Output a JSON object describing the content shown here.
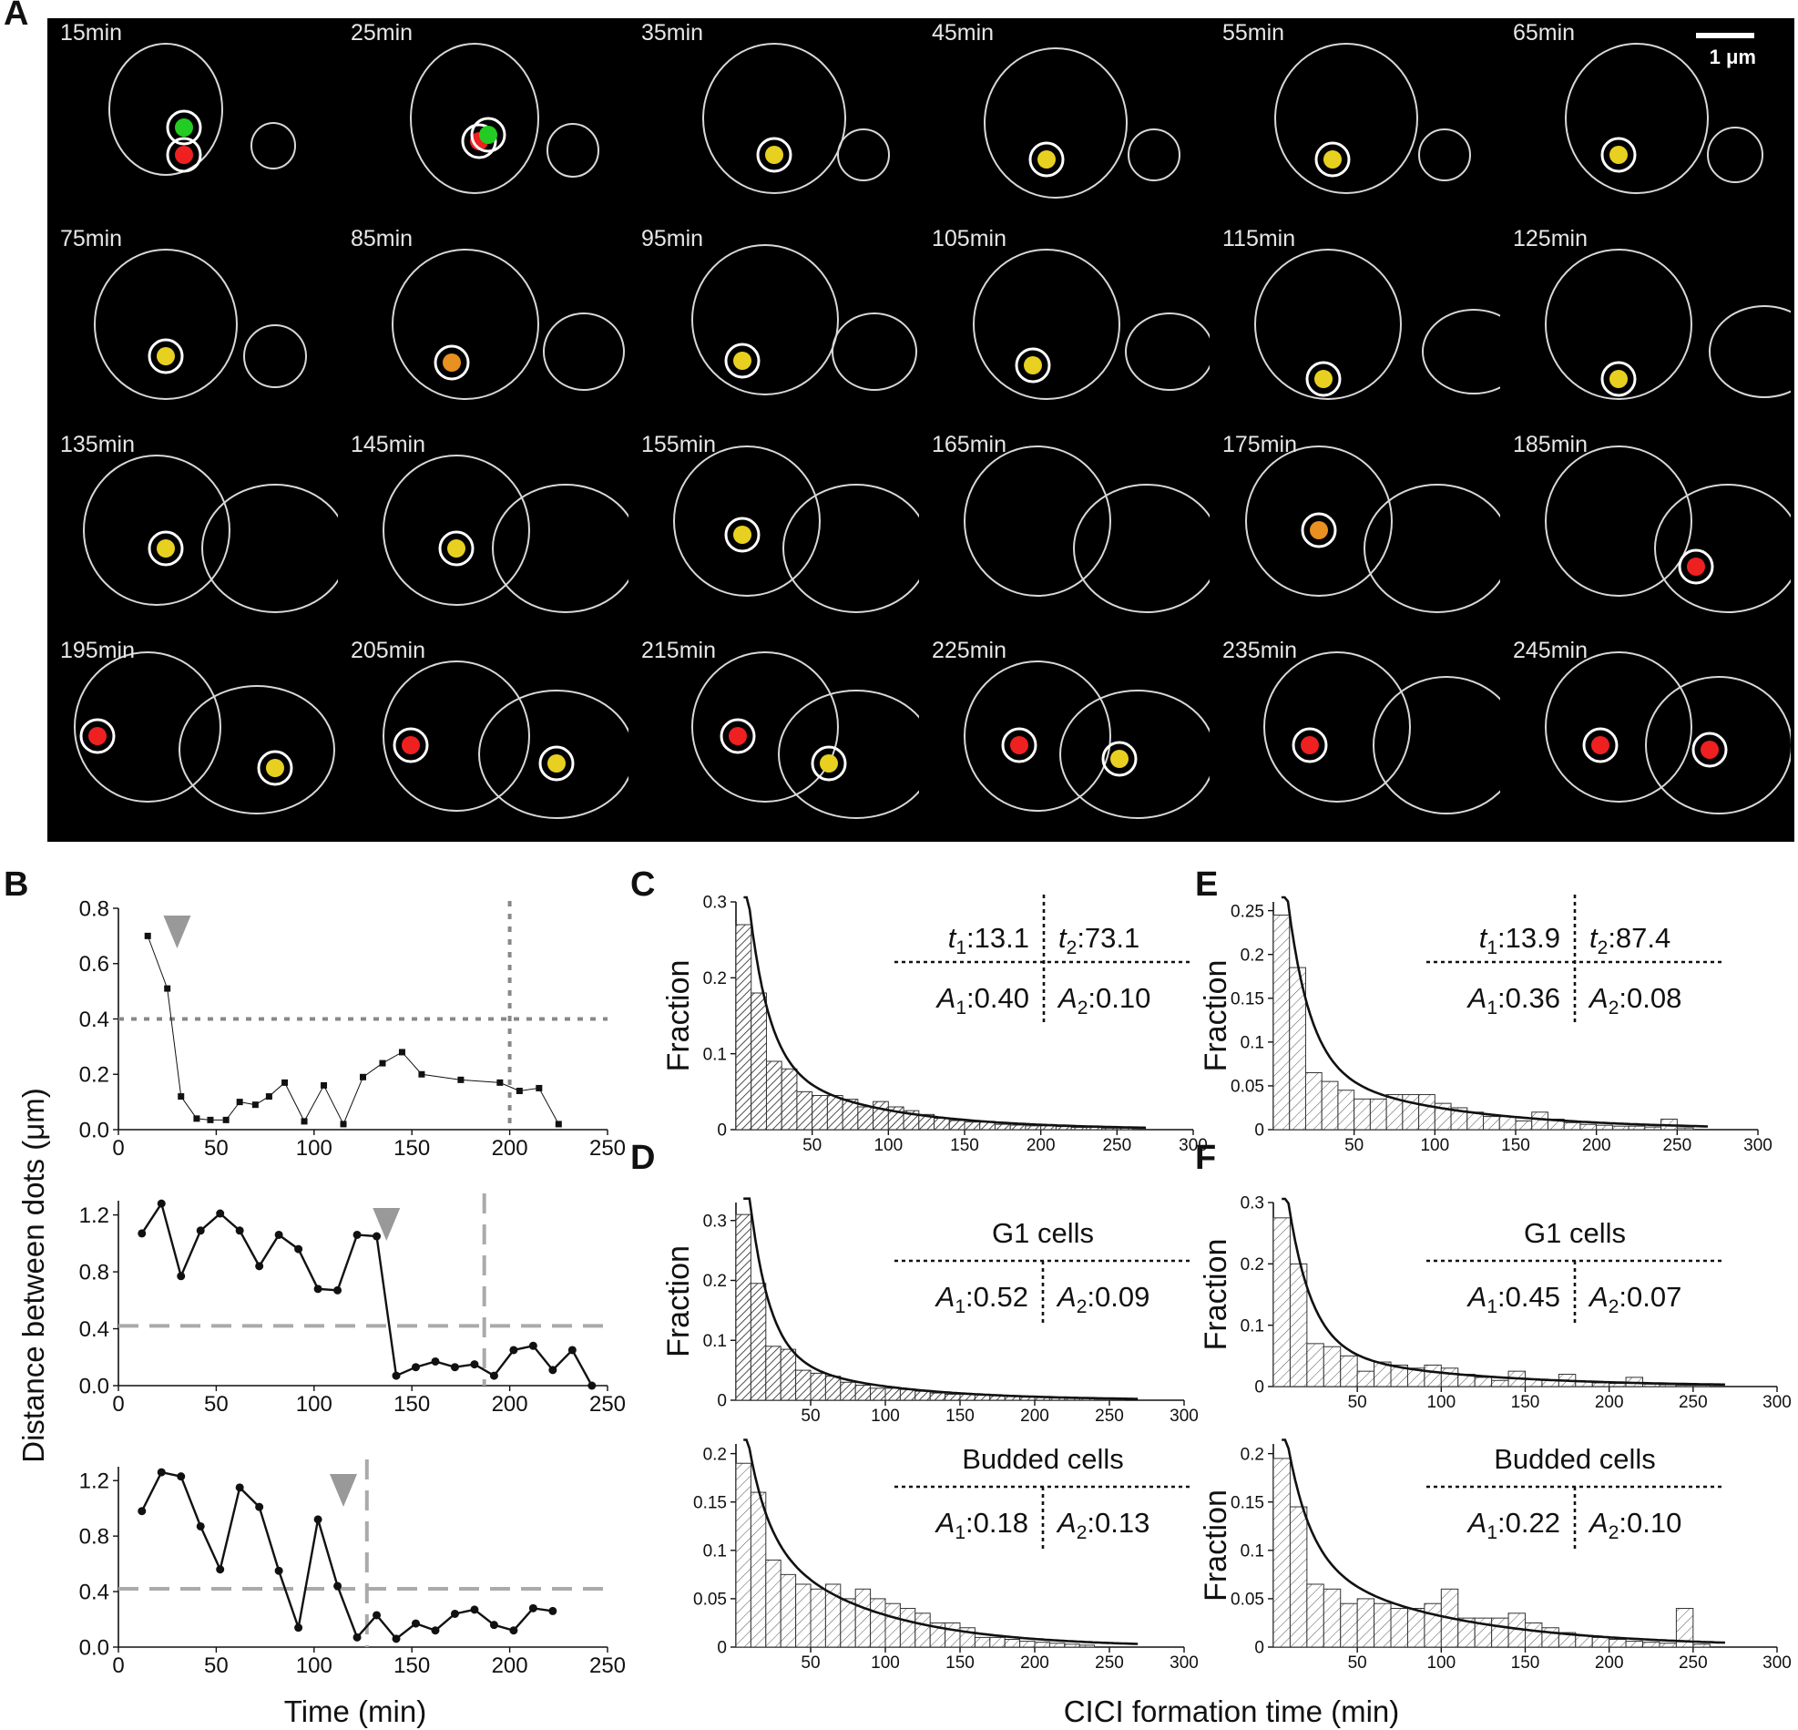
{
  "panel_labels": {
    "A": "A",
    "B": "B",
    "C": "C",
    "D": "D",
    "E": "E",
    "F": "F"
  },
  "panel_a": {
    "scale_bar_label": "1 μm",
    "time_labels": [
      "15min",
      "25min",
      "35min",
      "45min",
      "55min",
      "65min",
      "75min",
      "85min",
      "95min",
      "105min",
      "115min",
      "125min",
      "135min",
      "145min",
      "155min",
      "165min",
      "175min",
      "185min",
      "195min",
      "205min",
      "215min",
      "225min",
      "235min",
      "245min"
    ]
  },
  "shared_labels": {
    "b_ylabel": "Distance between dots (μm)",
    "b_xlabel": "Time (min)",
    "hist_xlabel": "CICI formation time (min)"
  },
  "chart_data": [
    {
      "id": "B1",
      "type": "line",
      "x": [
        15,
        25,
        32,
        40,
        47,
        55,
        62,
        70,
        77,
        85,
        95,
        105,
        115,
        125,
        135,
        145,
        155,
        175,
        195,
        205,
        215,
        225
      ],
      "y": [
        0.7,
        0.51,
        0.12,
        0.04,
        0.035,
        0.035,
        0.1,
        0.09,
        0.12,
        0.17,
        0.03,
        0.16,
        0.02,
        0.19,
        0.24,
        0.28,
        0.2,
        0.18,
        0.17,
        0.14,
        0.15,
        0.02
      ],
      "xlim": [
        0,
        250
      ],
      "ylim": [
        0,
        0.8
      ],
      "xticks": [
        0,
        50,
        100,
        150,
        200,
        250
      ],
      "yticks": [
        "0.0",
        "0.2",
        "0.4",
        "0.6",
        "0.8"
      ],
      "threshold_y": 0.4,
      "event_x": 200,
      "arrow_x": 30,
      "marker": "square",
      "style": "dotted"
    },
    {
      "id": "B2",
      "type": "line",
      "x": [
        12,
        22,
        32,
        42,
        52,
        62,
        72,
        82,
        92,
        102,
        112,
        122,
        132,
        142,
        152,
        162,
        172,
        182,
        192,
        202,
        212,
        222,
        232,
        242
      ],
      "y": [
        1.07,
        1.28,
        0.77,
        1.09,
        1.21,
        1.09,
        0.84,
        1.06,
        0.96,
        0.68,
        0.67,
        1.06,
        1.05,
        0.07,
        0.13,
        0.17,
        0.13,
        0.15,
        0.07,
        0.25,
        0.28,
        0.11,
        0.25,
        0
      ],
      "xlim": [
        0,
        250
      ],
      "ylim": [
        0,
        1.3
      ],
      "xticks": [
        0,
        50,
        100,
        150,
        200,
        250
      ],
      "yticks": [
        "0.0",
        "0.4",
        "0.8",
        "1.2"
      ],
      "threshold_y": 0.42,
      "event_x": 187,
      "arrow_x": 137,
      "marker": "circle",
      "style": "dashed"
    },
    {
      "id": "B3",
      "type": "line",
      "x": [
        12,
        22,
        32,
        42,
        52,
        62,
        72,
        82,
        92,
        102,
        112,
        122,
        132,
        142,
        152,
        162,
        172,
        182,
        192,
        202,
        212,
        222
      ],
      "y": [
        0.98,
        1.26,
        1.23,
        0.87,
        0.56,
        1.15,
        1.01,
        0.55,
        0.14,
        0.92,
        0.44,
        0.07,
        0.23,
        0.06,
        0.17,
        0.12,
        0.24,
        0.27,
        0.16,
        0.12,
        0.28,
        0.26
      ],
      "xlim": [
        0,
        250
      ],
      "ylim": [
        0,
        1.3
      ],
      "xticks": [
        0,
        50,
        100,
        150,
        200,
        250
      ],
      "yticks": [
        "0.0",
        "0.4",
        "0.8",
        "1.2"
      ],
      "threshold_y": 0.42,
      "event_x": 127,
      "arrow_x": 115,
      "marker": "circle",
      "style": "dashed"
    },
    {
      "id": "C",
      "type": "bar",
      "ylabel": "Fraction",
      "bin_start": 5,
      "bin_width": 10,
      "values": [
        0.27,
        0.18,
        0.09,
        0.08,
        0.05,
        0.045,
        0.045,
        0.04,
        0.03,
        0.037,
        0.03,
        0.025,
        0.02,
        0.015,
        0.012,
        0.01,
        0.01,
        0.007,
        0.006,
        0.005,
        0.005,
        0.004,
        0.003,
        0.003,
        0.002,
        0.002
      ],
      "xlim": [
        0,
        300
      ],
      "ylim": [
        0,
        0.3
      ],
      "xticks": [
        50,
        100,
        150,
        200,
        250,
        300
      ],
      "yticks": [
        0,
        0.1,
        0.2,
        0.3
      ],
      "fit": {
        "t1": 13.1,
        "t2": 73.1,
        "A1": 0.4,
        "A2": 0.1
      },
      "table": {
        "r1c1_sym": "t",
        "r1c1_sub": "1",
        "r1c1_val": ":13.1",
        "r1c2_sym": "t",
        "r1c2_sub": "2",
        "r1c2_val": ":73.1",
        "r2c1_sym": "A",
        "r2c1_sub": "1",
        "r2c1_val": ":0.40",
        "r2c2_sym": "A",
        "r2c2_sub": "2",
        "r2c2_val": ":0.10"
      },
      "hatch": "dense"
    },
    {
      "id": "D_G1",
      "type": "bar",
      "ylabel": "Fraction",
      "title": "G1 cells",
      "bin_start": 5,
      "bin_width": 10,
      "values": [
        0.31,
        0.195,
        0.09,
        0.085,
        0.05,
        0.045,
        0.04,
        0.03,
        0.025,
        0.02,
        0.02,
        0.018,
        0.015,
        0.012,
        0.01,
        0.01,
        0.009,
        0.008,
        0.007,
        0.006,
        0.005,
        0.004,
        0.003,
        0.003,
        0.002,
        0.002
      ],
      "xlim": [
        0,
        300
      ],
      "ylim": [
        0,
        0.33
      ],
      "xticks": [
        50,
        100,
        150,
        200,
        250,
        300
      ],
      "yticks": [
        0,
        0.1,
        0.2,
        0.3
      ],
      "fit": {
        "t1": 13.1,
        "t2": 73.1,
        "A1": 0.52,
        "A2": 0.09
      },
      "table": {
        "r2c1_sym": "A",
        "r2c1_sub": "1",
        "r2c1_val": ":0.52",
        "r2c2_sym": "A",
        "r2c2_sub": "2",
        "r2c2_val": ":0.09"
      },
      "hatch": "dense"
    },
    {
      "id": "D_Budded",
      "type": "bar",
      "ylabel": "",
      "title": "Budded cells",
      "bin_start": 5,
      "bin_width": 10,
      "values": [
        0.19,
        0.16,
        0.09,
        0.075,
        0.065,
        0.06,
        0.065,
        0.05,
        0.06,
        0.05,
        0.045,
        0.04,
        0.035,
        0.025,
        0.025,
        0.02,
        0.01,
        0.01,
        0.008,
        0.006,
        0.005,
        0.004,
        0.003,
        0.002
      ],
      "xlim": [
        0,
        300
      ],
      "ylim": [
        0,
        0.21
      ],
      "xticks": [
        50,
        100,
        150,
        200,
        250,
        300
      ],
      "yticks": [
        0,
        0.05,
        0.1,
        0.15,
        0.2
      ],
      "fit": {
        "t1": 13.1,
        "t2": 73.1,
        "A1": 0.18,
        "A2": 0.13
      },
      "table": {
        "r2c1_sym": "A",
        "r2c1_sub": "1",
        "r2c1_val": ":0.18",
        "r2c2_sym": "A",
        "r2c2_sub": "2",
        "r2c2_val": ":0.13"
      },
      "hatch": "light"
    },
    {
      "id": "E",
      "type": "bar",
      "ylabel": "Fraction",
      "bin_start": 5,
      "bin_width": 10,
      "values": [
        0.245,
        0.185,
        0.065,
        0.055,
        0.045,
        0.035,
        0.035,
        0.04,
        0.04,
        0.04,
        0.03,
        0.025,
        0.02,
        0.015,
        0.015,
        0.01,
        0.02,
        0.012,
        0.008,
        0.006,
        0.005,
        0.004,
        0.004,
        0.003,
        0.012,
        0.002
      ],
      "xlim": [
        0,
        300
      ],
      "ylim": [
        0,
        0.26
      ],
      "xticks": [
        50,
        100,
        150,
        200,
        250,
        300
      ],
      "yticks": [
        0,
        0.05,
        0.1,
        0.15,
        0.2,
        0.25
      ],
      "fit": {
        "t1": 13.9,
        "t2": 87.4,
        "A1": 0.36,
        "A2": 0.08
      },
      "table": {
        "r1c1_sym": "t",
        "r1c1_sub": "1",
        "r1c1_val": ":13.9",
        "r1c2_sym": "t",
        "r1c2_sub": "2",
        "r1c2_val": ":87.4",
        "r2c1_sym": "A",
        "r2c1_sub": "1",
        "r2c1_val": ":0.36",
        "r2c2_sym": "A",
        "r2c2_sub": "2",
        "r2c2_val": ":0.08"
      },
      "hatch": "light"
    },
    {
      "id": "F_G1",
      "type": "bar",
      "ylabel": "Fraction",
      "title": "G1 cells",
      "bin_start": 5,
      "bin_width": 10,
      "values": [
        0.275,
        0.2,
        0.07,
        0.065,
        0.05,
        0.025,
        0.04,
        0.035,
        0.03,
        0.035,
        0.03,
        0.02,
        0.015,
        0.01,
        0.025,
        0.012,
        0.01,
        0.02,
        0.008,
        0.006,
        0.005,
        0.015,
        0.004,
        0.003,
        0.002,
        0.002
      ],
      "xlim": [
        0,
        300
      ],
      "ylim": [
        0,
        0.3
      ],
      "xticks": [
        50,
        100,
        150,
        200,
        250,
        300
      ],
      "yticks": [
        0,
        0.1,
        0.2,
        0.3
      ],
      "fit": {
        "t1": 13.9,
        "t2": 87.4,
        "A1": 0.45,
        "A2": 0.07
      },
      "table": {
        "r2c1_sym": "A",
        "r2c1_sub": "1",
        "r2c1_val": ":0.45",
        "r2c2_sym": "A",
        "r2c2_sub": "2",
        "r2c2_val": ":0.07"
      },
      "hatch": "light"
    },
    {
      "id": "F_Budded",
      "type": "bar",
      "ylabel": "Fraction",
      "title": "Budded cells",
      "bin_start": 5,
      "bin_width": 10,
      "values": [
        0.195,
        0.145,
        0.065,
        0.06,
        0.045,
        0.05,
        0.045,
        0.04,
        0.04,
        0.045,
        0.06,
        0.03,
        0.03,
        0.03,
        0.035,
        0.025,
        0.02,
        0.015,
        0.012,
        0.01,
        0.008,
        0.006,
        0.005,
        0.004,
        0.04,
        0.003
      ],
      "xlim": [
        0,
        300
      ],
      "ylim": [
        0,
        0.21
      ],
      "xticks": [
        50,
        100,
        150,
        200,
        250,
        300
      ],
      "yticks": [
        0,
        0.05,
        0.1,
        0.15,
        0.2
      ],
      "fit": {
        "t1": 13.9,
        "t2": 87.4,
        "A1": 0.22,
        "A2": 0.1
      },
      "table": {
        "r2c1_sym": "A",
        "r2c1_sub": "1",
        "r2c1_val": ":0.22",
        "r2c2_sym": "A",
        "r2c2_sub": "2",
        "r2c2_val": ":0.10"
      },
      "hatch": "light"
    }
  ]
}
